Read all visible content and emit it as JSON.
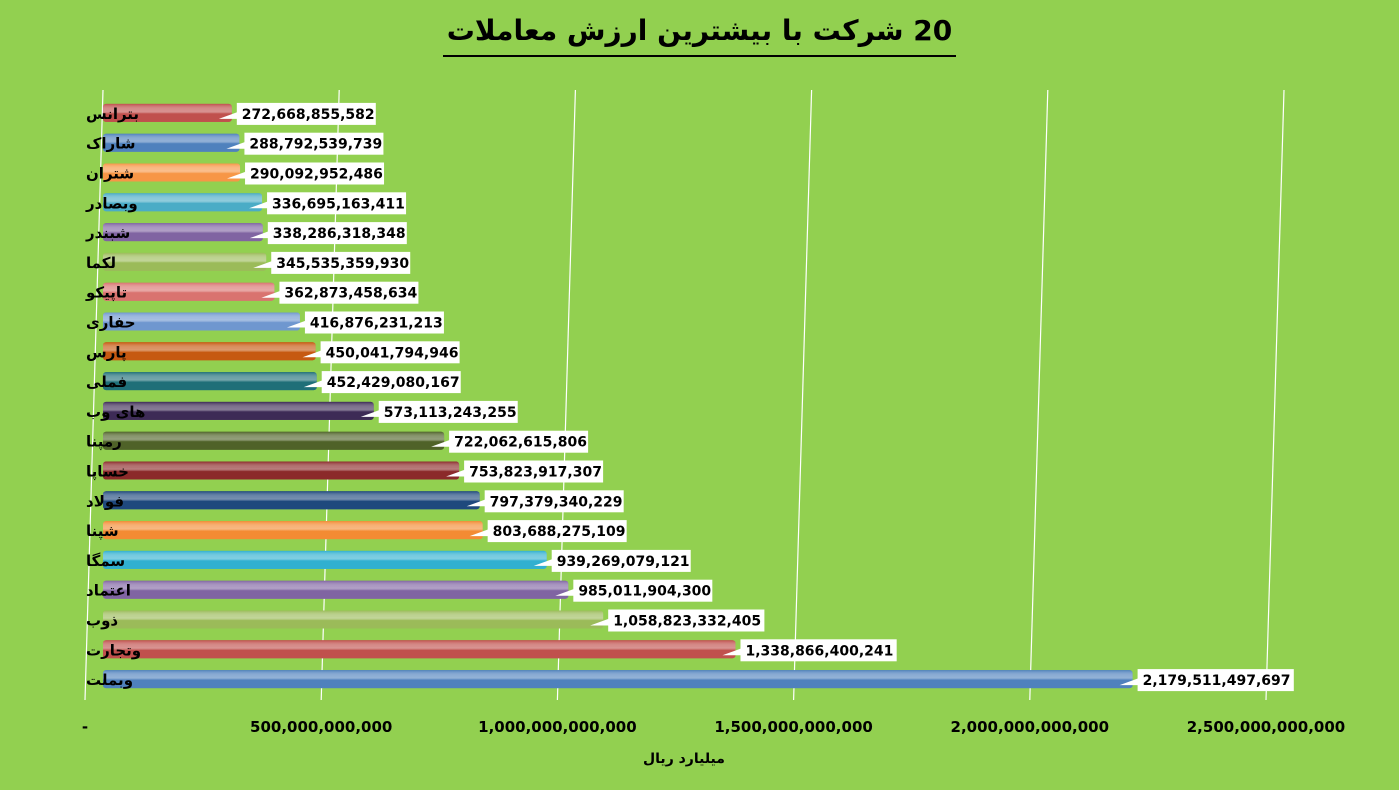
{
  "chart_data": {
    "type": "bar",
    "orientation": "horizontal",
    "title": "20 شرکت با بیشترین ارزش معاملات",
    "xlabel": "میلیارد ریال",
    "xlim": [
      0,
      2500000000000
    ],
    "grid": true,
    "x_ticks": [
      "-",
      "500,000,000,000",
      "1,000,000,000,000",
      "1,500,000,000,000",
      "2,000,000,000,000",
      "2,500,000,000,000"
    ],
    "categories": [
      "بترانس",
      "شاراک",
      "شتران",
      "وبصادر",
      "شبندر",
      "لکما",
      "تاپیکو",
      "حفاری",
      "پارس",
      "فملی",
      "های وب",
      "رمپنا",
      "خساپا",
      "فولاد",
      "شپنا",
      "سمگا",
      "اعتماد",
      "ذوب",
      "وتجارت",
      "وبملت"
    ],
    "values": [
      272668855582,
      288792539739,
      290092952486,
      336695163411,
      338286318348,
      345535359930,
      362873458634,
      416876231213,
      450041794946,
      452429080167,
      573113243255,
      722062615806,
      753823917307,
      797379340229,
      803688275109,
      939269079121,
      985011904300,
      1058823332405,
      1338866400241,
      2179511497697
    ],
    "data_labels": [
      "272,668,855,582",
      "288,792,539,739",
      "290,092,952,486",
      "336,695,163,411",
      "338,286,318,348",
      "345,535,359,930",
      "362,873,458,634",
      "416,876,231,213",
      "450,041,794,946",
      "452,429,080,167",
      "573,113,243,255",
      "722,062,615,806",
      "753,823,917,307",
      "797,379,340,229",
      "803,688,275,109",
      "939,269,079,121",
      "985,011,904,300",
      "1,058,823,332,405",
      "1,338,866,400,241",
      "2,179,511,497,697"
    ],
    "colors": [
      "#c0504d",
      "#4f81bd",
      "#f79646",
      "#4bacc6",
      "#8064a2",
      "#9bbb59",
      "#d9736f",
      "#6f97cf",
      "#c65911",
      "#1f6f78",
      "#3d2b56",
      "#4f6228",
      "#8b2a2a",
      "#1f497d",
      "#f38b33",
      "#31b0d0",
      "#8064a2",
      "#9bbb59",
      "#c0504d",
      "#4f81bd"
    ]
  }
}
